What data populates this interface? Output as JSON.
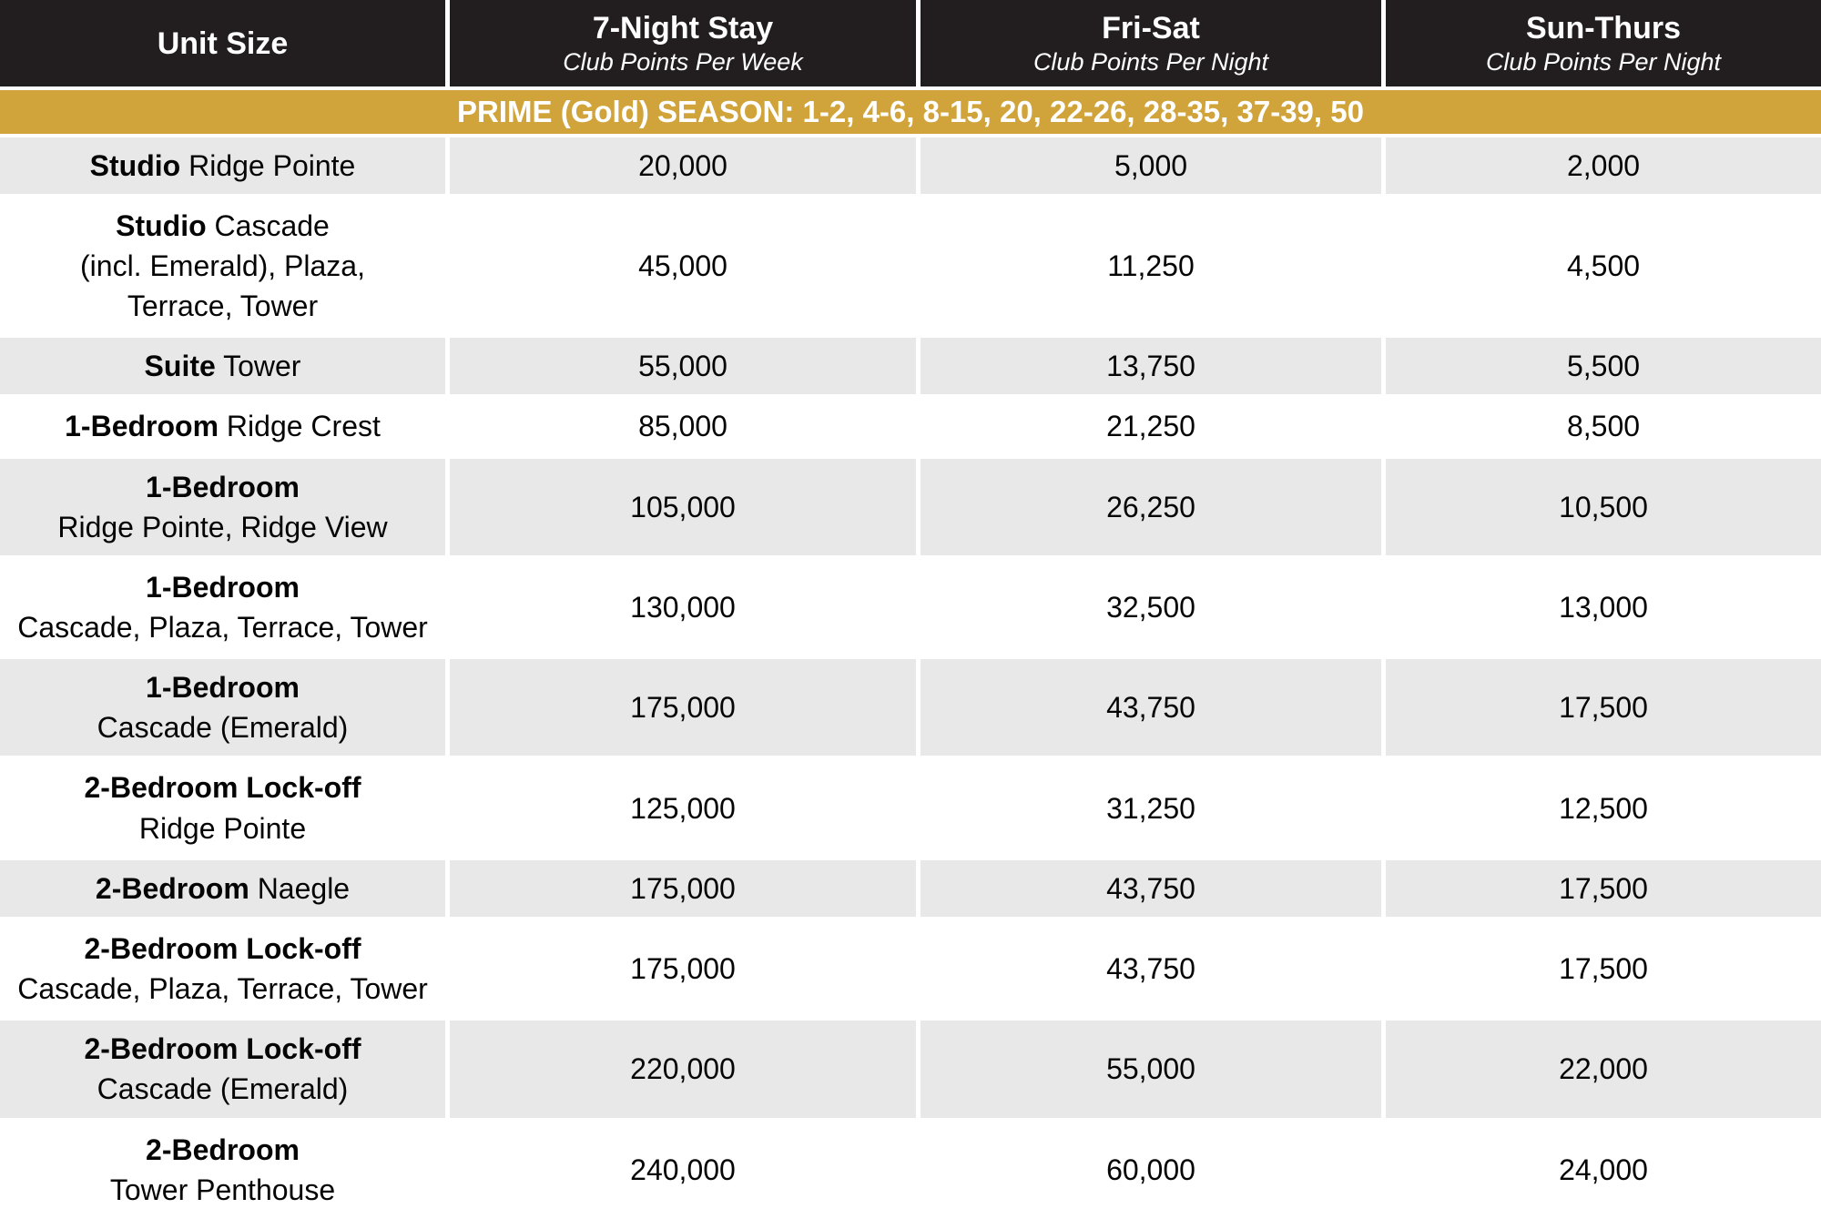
{
  "header": {
    "columns": [
      {
        "title": "Unit Size",
        "subtitle": ""
      },
      {
        "title": "7-Night Stay",
        "subtitle": "Club Points Per Week"
      },
      {
        "title": "Fri-Sat",
        "subtitle": "Club Points Per Night"
      },
      {
        "title": "Sun-Thurs",
        "subtitle": "Club Points Per Night"
      }
    ]
  },
  "season_banner": "PRIME (Gold) SEASON: 1-2, 4-6, 8-15, 20, 22-26, 28-35, 37-39, 50",
  "colors": {
    "header_bg": "#221e1f",
    "banner_gold": "#d1a33b",
    "row_shaded": "#e8e8e8",
    "row_plain": "#ffffff"
  },
  "rows": [
    {
      "bold": "Studio",
      "rest": " Ridge Pointe",
      "week": "20,000",
      "fri_sat": "5,000",
      "sun_thurs": "2,000"
    },
    {
      "bold": "Studio",
      "rest": " Cascade\n(incl. Emerald), Plaza,\nTerrace, Tower",
      "week": "45,000",
      "fri_sat": "11,250",
      "sun_thurs": "4,500"
    },
    {
      "bold": "Suite",
      "rest": " Tower",
      "week": "55,000",
      "fri_sat": "13,750",
      "sun_thurs": "5,500"
    },
    {
      "bold": "1-Bedroom",
      "rest": " Ridge Crest",
      "week": "85,000",
      "fri_sat": "21,250",
      "sun_thurs": "8,500"
    },
    {
      "bold": "1-Bedroom",
      "rest": "\nRidge Pointe, Ridge View",
      "week": "105,000",
      "fri_sat": "26,250",
      "sun_thurs": "10,500"
    },
    {
      "bold": "1-Bedroom",
      "rest": "\nCascade, Plaza, Terrace, Tower",
      "week": "130,000",
      "fri_sat": "32,500",
      "sun_thurs": "13,000"
    },
    {
      "bold": "1-Bedroom",
      "rest": "\nCascade (Emerald)",
      "week": "175,000",
      "fri_sat": "43,750",
      "sun_thurs": "17,500"
    },
    {
      "bold": "2-Bedroom Lock-off",
      "rest": "\nRidge Pointe",
      "week": "125,000",
      "fri_sat": "31,250",
      "sun_thurs": "12,500"
    },
    {
      "bold": "2-Bedroom",
      "rest": " Naegle",
      "week": "175,000",
      "fri_sat": "43,750",
      "sun_thurs": "17,500"
    },
    {
      "bold": "2-Bedroom Lock-off",
      "rest": "\nCascade, Plaza, Terrace, Tower",
      "week": "175,000",
      "fri_sat": "43,750",
      "sun_thurs": "17,500"
    },
    {
      "bold": "2-Bedroom Lock-off",
      "rest": "\nCascade (Emerald)",
      "week": "220,000",
      "fri_sat": "55,000",
      "sun_thurs": "22,000"
    },
    {
      "bold": "2-Bedroom",
      "rest": "\nTower Penthouse",
      "week": "240,000",
      "fri_sat": "60,000",
      "sun_thurs": "24,000"
    }
  ],
  "chart_data": {
    "type": "table",
    "title": "PRIME (Gold) SEASON: 1-2, 4-6, 8-15, 20, 22-26, 28-35, 37-39, 50",
    "columns": [
      "Unit Size",
      "7-Night Stay (Club Points Per Week)",
      "Fri-Sat (Club Points Per Night)",
      "Sun-Thurs (Club Points Per Night)"
    ],
    "rows": [
      [
        "Studio Ridge Pointe",
        20000,
        5000,
        2000
      ],
      [
        "Studio Cascade (incl. Emerald), Plaza, Terrace, Tower",
        45000,
        11250,
        4500
      ],
      [
        "Suite Tower",
        55000,
        13750,
        5500
      ],
      [
        "1-Bedroom Ridge Crest",
        85000,
        21250,
        8500
      ],
      [
        "1-Bedroom Ridge Pointe, Ridge View",
        105000,
        26250,
        10500
      ],
      [
        "1-Bedroom Cascade, Plaza, Terrace, Tower",
        130000,
        32500,
        13000
      ],
      [
        "1-Bedroom Cascade (Emerald)",
        175000,
        43750,
        17500
      ],
      [
        "2-Bedroom Lock-off Ridge Pointe",
        125000,
        31250,
        12500
      ],
      [
        "2-Bedroom Naegle",
        175000,
        43750,
        17500
      ],
      [
        "2-Bedroom Lock-off Cascade, Plaza, Terrace, Tower",
        175000,
        43750,
        17500
      ],
      [
        "2-Bedroom Lock-off Cascade (Emerald)",
        220000,
        55000,
        22000
      ],
      [
        "2-Bedroom Tower Penthouse",
        240000,
        60000,
        24000
      ]
    ]
  }
}
